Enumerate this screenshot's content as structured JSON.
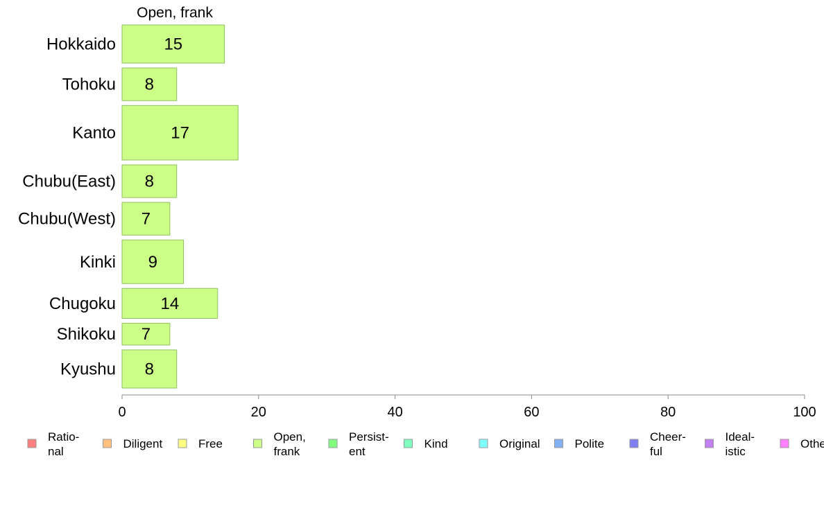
{
  "chart_data": {
    "type": "bar",
    "orientation": "horizontal",
    "series_title": "Open, frank",
    "categories": [
      "Hokkaido",
      "Tohoku",
      "Kanto",
      "Chubu(East)",
      "Chubu(West)",
      "Kinki",
      "Chugoku",
      "Shikoku",
      "Kyushu"
    ],
    "values": [
      15,
      8,
      17,
      8,
      7,
      9,
      14,
      7,
      8
    ],
    "bar_labels": [
      "15",
      "8",
      "17",
      "8",
      "7",
      "9",
      "14",
      "7",
      "8"
    ],
    "bar_widths_relative": [
      0.7,
      0.6,
      1.0,
      0.6,
      0.6,
      0.8,
      0.55,
      0.4,
      0.7
    ],
    "xlim": [
      0,
      100
    ],
    "x_ticks": [
      0,
      20,
      40,
      60,
      80,
      100
    ],
    "x_tick_labels": [
      "0",
      "20",
      "40",
      "60",
      "80",
      "100"
    ],
    "grid": false,
    "bar_color": "#ccff88",
    "bar_stroke": "#8fbf60",
    "legend_position": "bottom",
    "legend": [
      {
        "lines": [
          "Ratio-",
          "nal"
        ],
        "color": "#ff8080"
      },
      {
        "lines": [
          "Diligent"
        ],
        "color": "#ffc080"
      },
      {
        "lines": [
          "Free"
        ],
        "color": "#ffff80"
      },
      {
        "lines": [
          "Open,",
          "frank"
        ],
        "color": "#ccff88"
      },
      {
        "lines": [
          "Persist-",
          "ent"
        ],
        "color": "#80ff80"
      },
      {
        "lines": [
          "Kind"
        ],
        "color": "#80ffc0"
      },
      {
        "lines": [
          "Original"
        ],
        "color": "#80ffff"
      },
      {
        "lines": [
          "Polite"
        ],
        "color": "#80b0f0"
      },
      {
        "lines": [
          "Cheer-",
          "ful"
        ],
        "color": "#8080f0"
      },
      {
        "lines": [
          "Ideal-",
          "istic"
        ],
        "color": "#c080f0"
      },
      {
        "lines": [
          "Othe"
        ],
        "color": "#ff80ff"
      }
    ]
  }
}
